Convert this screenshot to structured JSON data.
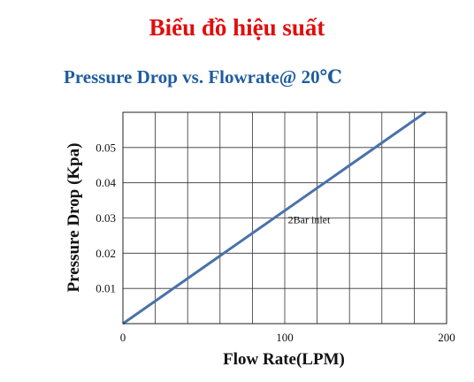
{
  "page": {
    "title": "Biểu đồ hiệu suất",
    "title_color": "#e00d0d"
  },
  "chart_data": {
    "type": "line",
    "title": "Pressure Drop vs. Flowrate@ 20℃",
    "title_color": "#1f5c9e",
    "xlabel": "Flow Rate(LPM)",
    "ylabel": "Pressure Drop (Kpa)",
    "xlim": [
      0,
      200
    ],
    "ylim": [
      0,
      0.06
    ],
    "xticks": [
      0,
      100,
      200
    ],
    "xtick_labels": [
      "0",
      "100",
      "200"
    ],
    "yticks": [
      0.01,
      0.02,
      0.03,
      0.04,
      0.05
    ],
    "ytick_labels": [
      "0.01",
      "0.02",
      "0.03",
      "0.04",
      "0.05"
    ],
    "x_grid_step": 20,
    "y_grid_step": 0.01,
    "grid": true,
    "series": [
      {
        "color": "#4a72aa",
        "x": [
          0,
          187
        ],
        "y": [
          0,
          0.06
        ]
      }
    ],
    "annotations": [
      {
        "text": "2Bar inlet",
        "x": 102,
        "y": 0.0285
      }
    ]
  }
}
